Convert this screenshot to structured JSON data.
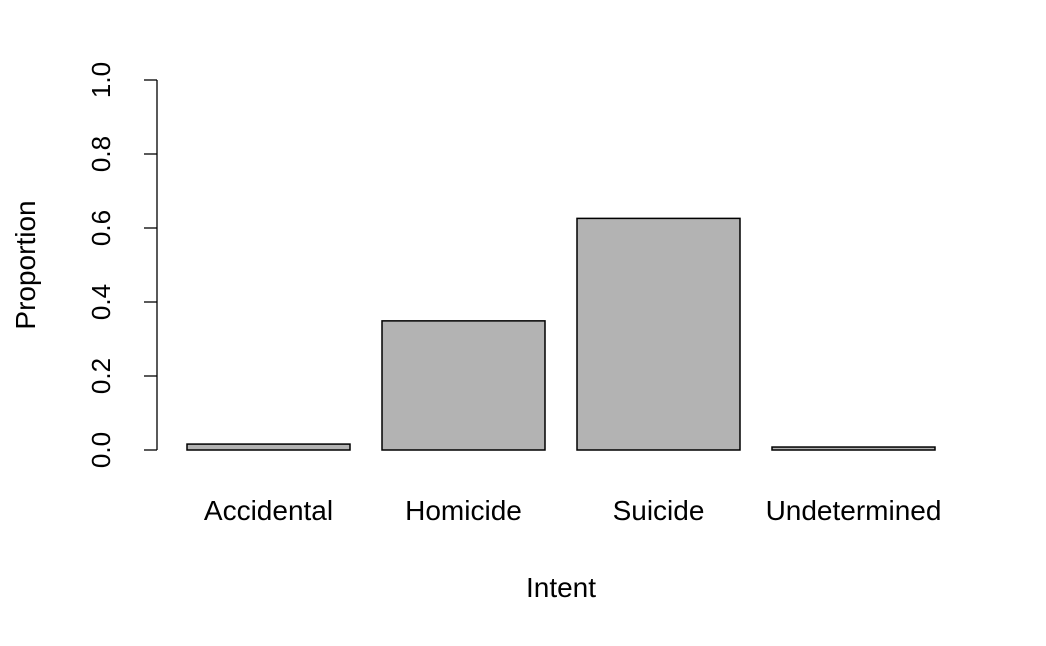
{
  "chart_data": {
    "type": "bar",
    "categories": [
      "Accidental",
      "Homicide",
      "Suicide",
      "Undetermined"
    ],
    "values": [
      0.016,
      0.349,
      0.626,
      0.008
    ],
    "title": "",
    "xlabel": "Intent",
    "ylabel": "Proportion",
    "ylim": [
      0,
      1
    ],
    "yticks": [
      "0.0",
      "0.2",
      "0.4",
      "0.6",
      "0.8",
      "1.0"
    ],
    "bar_color": "#b3b3b3",
    "grid": false
  }
}
